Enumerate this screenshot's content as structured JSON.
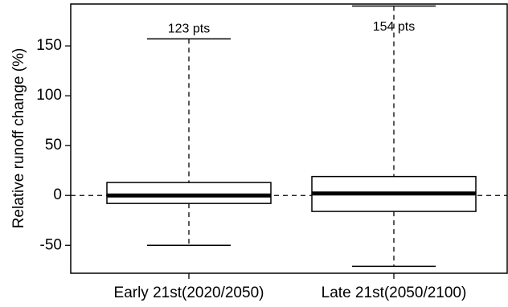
{
  "chart_data": {
    "type": "boxplot",
    "title": "",
    "xlabel": "",
    "ylabel": "Relative runoff change (%)",
    "ylim": [
      -78,
      192
    ],
    "yticks": [
      -50,
      0,
      50,
      100,
      150
    ],
    "reference_line": 0,
    "grid": false,
    "boxes": [
      {
        "category": "Early 21st(2020/2050)",
        "annotation": "123 pts",
        "whisker_low": -50,
        "q1": -8,
        "median": 0,
        "q3": 13,
        "whisker_high": 157
      },
      {
        "category": "Late 21st(2050/2100)",
        "annotation": "154 pts",
        "whisker_low": -71,
        "q1": -16,
        "median": 2,
        "q3": 19,
        "whisker_high": 190
      }
    ]
  }
}
